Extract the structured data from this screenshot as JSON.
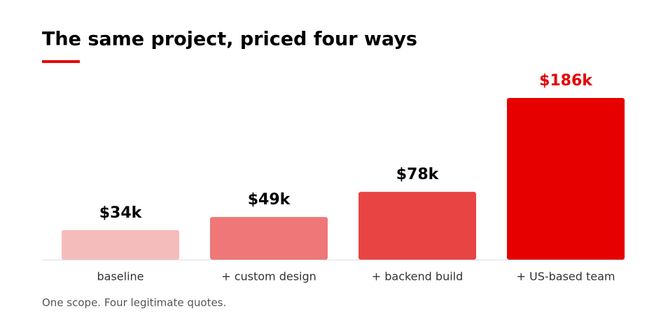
{
  "chart_data": {
    "type": "bar",
    "title": "The same project, priced four ways",
    "caption": "One scope. Four legitimate quotes.",
    "categories": [
      "baseline",
      "+ custom design",
      "+ backend build",
      "+ US-based team"
    ],
    "values": [
      34,
      49,
      78,
      186
    ],
    "value_labels": [
      "$34k",
      "$49k",
      "$78k",
      "$186k"
    ],
    "colors": [
      "#f5bcbc",
      "#ef7777",
      "#e84444",
      "#e60000"
    ],
    "value_label_colors": [
      "#000000",
      "#000000",
      "#000000",
      "#e60000"
    ]
  }
}
